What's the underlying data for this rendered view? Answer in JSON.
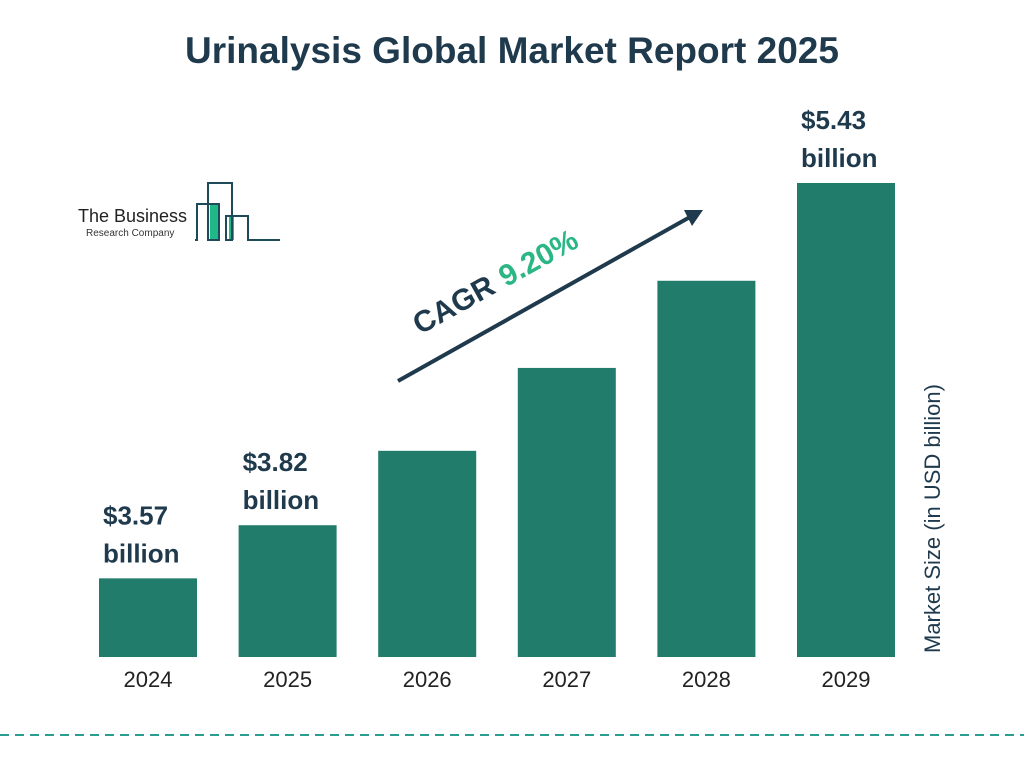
{
  "chart_data": {
    "type": "bar",
    "title": "Urinalysis Global Market Report 2025",
    "categories": [
      "2024",
      "2025",
      "2026",
      "2027",
      "2028",
      "2029"
    ],
    "values": [
      3.57,
      3.82,
      4.17,
      4.56,
      4.97,
      5.43
    ],
    "data_labels": [
      {
        "index": 0,
        "value": "$3.57",
        "unit": "billion"
      },
      {
        "index": 1,
        "value": "$3.82",
        "unit": "billion"
      },
      {
        "index": 5,
        "value": "$5.43",
        "unit": "billion"
      }
    ],
    "ylabel": "Market Size (in USD billion)",
    "xlabel": "",
    "ylim": [
      3.2,
      5.43
    ],
    "grid": false,
    "bar_color": "#217c6b",
    "annotation": {
      "prefix": "CAGR",
      "value": "9.20%",
      "prefix_color": "#1f3a4d",
      "value_color": "#2bb685"
    }
  },
  "logo": {
    "line1": "The Business",
    "line2": "Research Company"
  },
  "colors": {
    "title": "#1f3a4d",
    "dashed_line": "#2a9d8f",
    "logo_green": "#1fb987"
  }
}
